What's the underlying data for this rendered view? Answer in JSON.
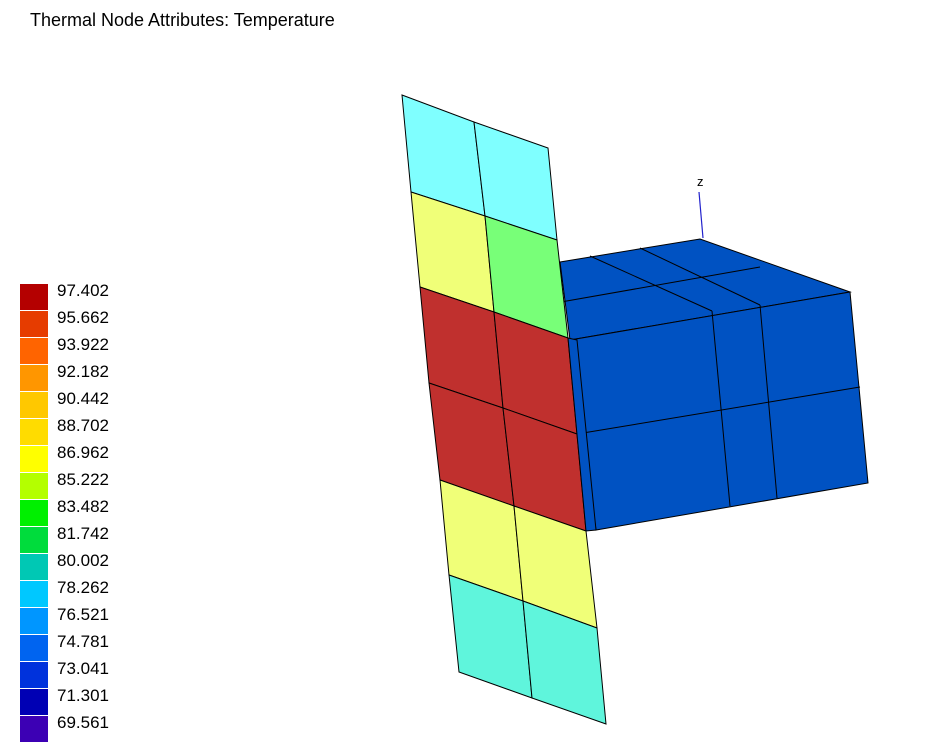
{
  "title": "Thermal Node Attributes: Temperature",
  "axis": {
    "label": "z",
    "color": "#2222cc"
  },
  "legend": [
    {
      "label": "97.402",
      "color": "#b40000"
    },
    {
      "label": "95.662",
      "color": "#e63c00"
    },
    {
      "label": "93.922",
      "color": "#ff6400"
    },
    {
      "label": "92.182",
      "color": "#ff9600"
    },
    {
      "label": "90.442",
      "color": "#ffc800"
    },
    {
      "label": "88.702",
      "color": "#ffdc00"
    },
    {
      "label": "86.962",
      "color": "#ffff00"
    },
    {
      "label": "85.222",
      "color": "#b4ff00"
    },
    {
      "label": "83.482",
      "color": "#00f000"
    },
    {
      "label": "81.742",
      "color": "#00dc3c"
    },
    {
      "label": "80.002",
      "color": "#00c8b4"
    },
    {
      "label": "78.262",
      "color": "#00c8ff"
    },
    {
      "label": "76.521",
      "color": "#0096ff"
    },
    {
      "label": "74.781",
      "color": "#0064f0"
    },
    {
      "label": "73.041",
      "color": "#0032dc"
    },
    {
      "label": "71.301",
      "color": "#0000b4"
    },
    {
      "label": "69.561",
      "color": "#3c00b4"
    }
  ],
  "element_colors": {
    "plate_cyan_top": "#7fffff",
    "plate_yellow": "#f0ff78",
    "plate_green": "#78ff78",
    "plate_red": "#c0302e",
    "plate_aqua_bottom": "#5ff5dc",
    "box_blue": "#0052c2",
    "edge": "#000000"
  }
}
